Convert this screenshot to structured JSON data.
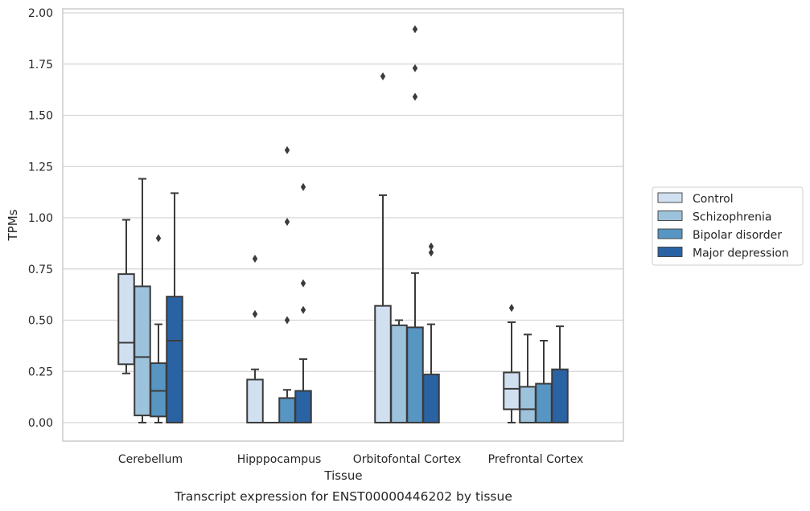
{
  "chart_data": {
    "type": "boxplot",
    "caption": "Transcript expression for ENST00000446202 by tissue",
    "xlabel": "Tissue",
    "ylabel": "TPMs",
    "ylim": [
      -0.09,
      2.02
    ],
    "yticks": [
      "0.00",
      "0.25",
      "0.50",
      "0.75",
      "1.00",
      "1.25",
      "1.50",
      "1.75",
      "2.00"
    ],
    "grid": "y",
    "legend_position": "right",
    "categories": [
      "Cerebellum",
      "Hipppocampus",
      "Orbitofontal Cortex",
      "Prefrontal Cortex"
    ],
    "series": [
      {
        "name": "Control",
        "color": "#d1e0f1",
        "boxes": [
          {
            "whisker_low": 0.24,
            "q1": 0.285,
            "median": 0.39,
            "q3": 0.725,
            "whisker_high": 0.99,
            "outliers": []
          },
          {
            "whisker_low": 0.0,
            "q1": 0.0,
            "median": 0.0,
            "q3": 0.21,
            "whisker_high": 0.26,
            "outliers": [
              0.8,
              0.53
            ]
          },
          {
            "whisker_low": 0.0,
            "q1": 0.0,
            "median": 0.0,
            "q3": 0.57,
            "whisker_high": 1.11,
            "outliers": [
              1.69
            ]
          },
          {
            "whisker_low": 0.0,
            "q1": 0.065,
            "median": 0.165,
            "q3": 0.245,
            "whisker_high": 0.49,
            "outliers": [
              0.56
            ]
          }
        ]
      },
      {
        "name": "Schizophrenia",
        "color": "#9cc2dc",
        "boxes": [
          {
            "whisker_low": 0.0,
            "q1": 0.035,
            "median": 0.32,
            "q3": 0.665,
            "whisker_high": 1.19,
            "outliers": []
          },
          {
            "whisker_low": 0.0,
            "q1": 0.0,
            "median": 0.0,
            "q3": 0.0,
            "whisker_high": 0.0,
            "outliers": []
          },
          {
            "whisker_low": 0.0,
            "q1": 0.0,
            "median": 0.0,
            "q3": 0.475,
            "whisker_high": 0.5,
            "outliers": []
          },
          {
            "whisker_low": 0.0,
            "q1": 0.0,
            "median": 0.065,
            "q3": 0.175,
            "whisker_high": 0.43,
            "outliers": []
          }
        ]
      },
      {
        "name": "Bipolar disorder",
        "color": "#5796c3",
        "boxes": [
          {
            "whisker_low": 0.0,
            "q1": 0.03,
            "median": 0.155,
            "q3": 0.29,
            "whisker_high": 0.48,
            "outliers": [
              0.9
            ]
          },
          {
            "whisker_low": 0.0,
            "q1": 0.0,
            "median": 0.0,
            "q3": 0.12,
            "whisker_high": 0.16,
            "outliers": [
              1.33,
              0.98,
              0.5
            ]
          },
          {
            "whisker_low": 0.0,
            "q1": 0.0,
            "median": 0.0,
            "q3": 0.465,
            "whisker_high": 0.73,
            "outliers": [
              1.92,
              1.73,
              1.59
            ]
          },
          {
            "whisker_low": 0.0,
            "q1": 0.0,
            "median": 0.0,
            "q3": 0.19,
            "whisker_high": 0.4,
            "outliers": []
          }
        ]
      },
      {
        "name": "Major depression",
        "color": "#2a63a3",
        "boxes": [
          {
            "whisker_low": 0.0,
            "q1": 0.0,
            "median": 0.4,
            "q3": 0.615,
            "whisker_high": 1.12,
            "outliers": []
          },
          {
            "whisker_low": 0.0,
            "q1": 0.0,
            "median": 0.0,
            "q3": 0.155,
            "whisker_high": 0.31,
            "outliers": [
              1.15,
              0.68,
              0.55
            ]
          },
          {
            "whisker_low": 0.0,
            "q1": 0.0,
            "median": 0.0,
            "q3": 0.235,
            "whisker_high": 0.48,
            "outliers": [
              0.86,
              0.83
            ]
          },
          {
            "whisker_low": 0.0,
            "q1": 0.0,
            "median": 0.0,
            "q3": 0.26,
            "whisker_high": 0.47,
            "outliers": []
          }
        ]
      }
    ]
  }
}
